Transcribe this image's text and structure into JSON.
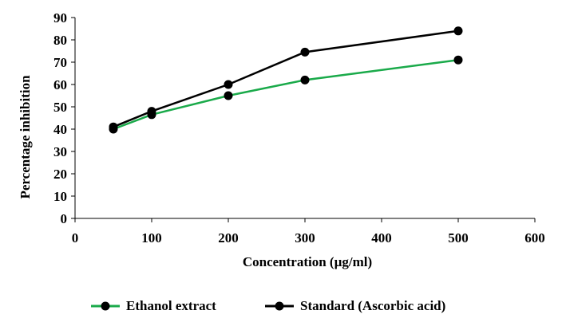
{
  "chart_data": {
    "type": "line",
    "xlabel": "Concentration (µg/ml)",
    "ylabel": "Percentage inhibition",
    "xlim": [
      0,
      600
    ],
    "ylim": [
      0,
      90
    ],
    "xticks": [
      "0",
      "100",
      "200",
      "300",
      "400",
      "500",
      "600"
    ],
    "yticks": [
      "0",
      "10",
      "20",
      "30",
      "40",
      "50",
      "60",
      "70",
      "80",
      "90"
    ],
    "grid": false,
    "legend_position": "bottom",
    "series": [
      {
        "name": "Ethanol extract",
        "color": "#1aaa4a",
        "x": [
          50,
          100,
          200,
          300,
          500
        ],
        "y": [
          40,
          46.5,
          55,
          62,
          71
        ]
      },
      {
        "name": "Standard (Ascorbic acid)",
        "color": "#000000",
        "x": [
          50,
          100,
          200,
          300,
          500
        ],
        "y": [
          41,
          48,
          60,
          74.5,
          84
        ]
      }
    ]
  }
}
